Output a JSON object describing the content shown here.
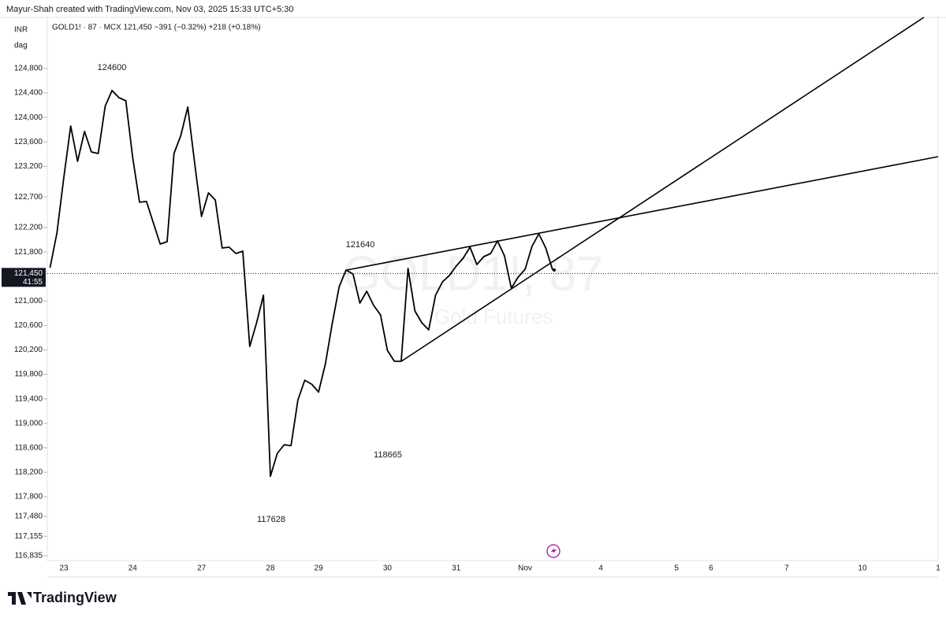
{
  "header": "Mayur-Shah created with TradingView.com, Nov 03, 2025 15:33 UTC+5:30",
  "footer": "TradingView",
  "chart_data": {
    "type": "line",
    "legend": "GOLD1! · 87 · MCX  121,450  −391 (−0.32%)  +218 (+0.18%)",
    "currency": "INR",
    "unit": "dag",
    "watermark": "GOLD1!, 87",
    "watermark_subtitle": "Gold Futures",
    "last_price": {
      "value": 121450,
      "label": "121,450"
    },
    "countdown": "41:55",
    "annotations": [
      "124600",
      "121640",
      "118665",
      "117628"
    ],
    "categories": [
      null,
      null,
      "23",
      null,
      null,
      null,
      null,
      null,
      null,
      null,
      null,
      null,
      "24",
      null,
      null,
      null,
      null,
      null,
      null,
      null,
      null,
      null,
      "27",
      null,
      null,
      null,
      null,
      null,
      null,
      null,
      null,
      null,
      "28",
      null,
      null,
      null,
      null,
      null,
      null,
      "29",
      null,
      null,
      null,
      null,
      null,
      null,
      null,
      null,
      null,
      "30",
      null,
      null,
      null,
      null,
      null,
      null,
      null,
      null,
      null,
      "31",
      null,
      null,
      null,
      null,
      null,
      null,
      null,
      null,
      null,
      "Nov",
      null,
      null,
      null,
      null,
      null,
      null,
      null,
      null,
      null,
      null,
      "4",
      null,
      null,
      null,
      null,
      null,
      null,
      null,
      null,
      null,
      null,
      "5",
      null,
      null,
      null,
      null,
      "6",
      null,
      null,
      null,
      null,
      null,
      null,
      null,
      null,
      null,
      null,
      "7",
      null,
      null,
      null,
      null,
      null,
      null,
      null,
      null,
      null,
      null,
      "10",
      null,
      null,
      null,
      null,
      null,
      null,
      null,
      null,
      null,
      null,
      "1"
    ],
    "series": [
      {
        "name": "GOLD1!",
        "color": "#000000",
        "values": [
          121545,
          122111,
          123024,
          123861,
          123282,
          123771,
          123436,
          123410,
          124182,
          124440,
          124324,
          124272,
          123346,
          122613,
          122626,
          122278,
          121931,
          121969,
          123410,
          123706,
          124170,
          123256,
          122381,
          122767,
          122651,
          121866,
          121879,
          121776,
          121815,
          120258,
          120644,
          121094,
          118135,
          118508,
          118650,
          118637,
          119383,
          119705,
          119640,
          119512,
          119975,
          120644,
          121236,
          121506,
          121442,
          120966,
          121159,
          120927,
          120773,
          120194,
          120014,
          120014,
          121532,
          120837,
          120644,
          120528,
          121094,
          121313,
          121416,
          121570,
          121699,
          121879,
          121596,
          121725,
          121776,
          121982,
          121738,
          121210,
          121390,
          121519,
          121892,
          122098,
          121866,
          121506,
          null,
          null,
          null,
          null,
          null,
          null,
          null,
          null,
          null,
          null,
          null,
          null,
          null,
          null,
          null,
          null,
          null,
          null,
          null,
          null,
          null,
          null,
          null,
          null,
          null,
          null,
          null,
          null,
          null,
          null,
          null,
          null,
          null,
          null,
          null,
          null,
          null,
          null,
          null,
          null,
          null,
          null,
          null,
          null,
          null,
          null,
          null,
          null,
          null,
          null,
          null,
          null,
          null,
          null,
          null,
          null
        ]
      }
    ],
    "ylim": [
      116758,
      125636
    ],
    "yticks": [
      {
        "value": 124800,
        "label": "124,800"
      },
      {
        "value": 124400,
        "label": "124,400"
      },
      {
        "value": 124000,
        "label": "124,000"
      },
      {
        "value": 123600,
        "label": "123,600"
      },
      {
        "value": 123200,
        "label": "123,200"
      },
      {
        "value": 122700,
        "label": "122,700"
      },
      {
        "value": 122200,
        "label": "122,200"
      },
      {
        "value": 121800,
        "label": "121,800"
      },
      {
        "value": 121000,
        "label": "121,000"
      },
      {
        "value": 120600,
        "label": "120,600"
      },
      {
        "value": 120200,
        "label": "120,200"
      },
      {
        "value": 119800,
        "label": "119,800"
      },
      {
        "value": 119400,
        "label": "119,400"
      },
      {
        "value": 119000,
        "label": "119,000"
      },
      {
        "value": 118600,
        "label": "118,600"
      },
      {
        "value": 118200,
        "label": "118,200"
      },
      {
        "value": 117800,
        "label": "117,800"
      },
      {
        "value": 117480,
        "label": "117,480"
      },
      {
        "value": 117155,
        "label": "117,155"
      },
      {
        "value": 116835,
        "label": "116,835"
      }
    ],
    "grid": false
  }
}
